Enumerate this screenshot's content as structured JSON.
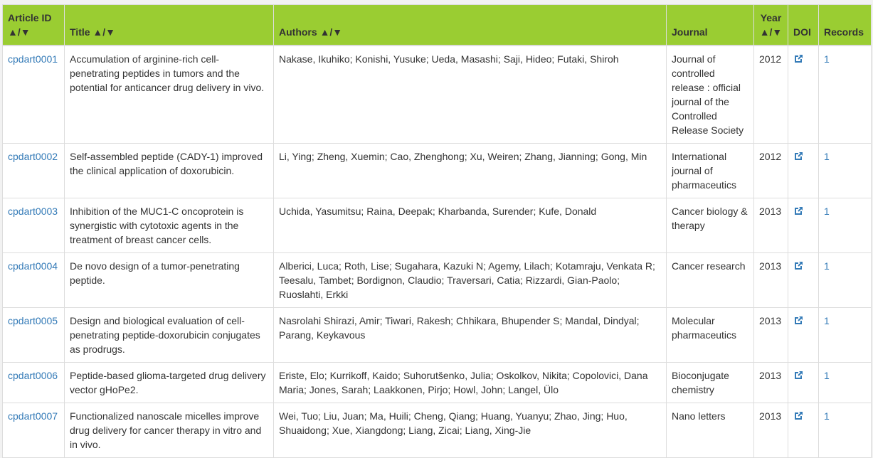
{
  "colors": {
    "header_bg": "#9acd32",
    "link": "#337ab7"
  },
  "headers": {
    "id": "Article ID",
    "title": "Title",
    "authors": "Authors",
    "journal": "Journal",
    "year": "Year",
    "doi": "DOI",
    "records": "Records",
    "sort": "▲/▼"
  },
  "doi_icon": "external-link-icon",
  "rows": [
    {
      "id": "cpdart0001",
      "title": "Accumulation of arginine-rich cell-penetrating peptides in tumors and the potential for anticancer drug delivery in vivo.",
      "authors": "Nakase, Ikuhiko; Konishi, Yusuke; Ueda, Masashi; Saji, Hideo; Futaki, Shiroh",
      "journal": "Journal of controlled release : official journal of the Controlled Release Society",
      "year": "2012",
      "records": "1"
    },
    {
      "id": "cpdart0002",
      "title": "Self-assembled peptide (CADY-1) improved the clinical application of doxorubicin.",
      "authors": "Li, Ying; Zheng, Xuemin; Cao, Zhenghong; Xu, Weiren; Zhang, Jianning; Gong, Min",
      "journal": "International journal of pharmaceutics",
      "year": "2012",
      "records": "1"
    },
    {
      "id": "cpdart0003",
      "title": "Inhibition of the MUC1-C oncoprotein is synergistic with cytotoxic agents in the treatment of breast cancer cells.",
      "authors": "Uchida, Yasumitsu; Raina, Deepak; Kharbanda, Surender; Kufe, Donald",
      "journal": "Cancer biology & therapy",
      "year": "2013",
      "records": "1"
    },
    {
      "id": "cpdart0004",
      "title": "De novo design of a tumor-penetrating peptide.",
      "authors": "Alberici, Luca; Roth, Lise; Sugahara, Kazuki N; Agemy, Lilach; Kotamraju, Venkata R; Teesalu, Tambet; Bordignon, Claudio; Traversari, Catia; Rizzardi, Gian-Paolo; Ruoslahti, Erkki",
      "journal": "Cancer research",
      "year": "2013",
      "records": "1"
    },
    {
      "id": "cpdart0005",
      "title": "Design and biological evaluation of cell-penetrating peptide-doxorubicin conjugates as prodrugs.",
      "authors": "Nasrolahi Shirazi, Amir; Tiwari, Rakesh; Chhikara, Bhupender S; Mandal, Dindyal; Parang, Keykavous",
      "journal": "Molecular pharmaceutics",
      "year": "2013",
      "records": "1"
    },
    {
      "id": "cpdart0006",
      "title": "Peptide-based glioma-targeted drug delivery vector gHoPe2.",
      "authors": "Eriste, Elo; Kurrikoff, Kaido; Suhorutšenko, Julia; Oskolkov, Nikita; Copolovici, Dana Maria; Jones, Sarah; Laakkonen, Pirjo; Howl, John; Langel, Ülo",
      "journal": "Bioconjugate chemistry",
      "year": "2013",
      "records": "1"
    },
    {
      "id": "cpdart0007",
      "title": "Functionalized nanoscale micelles improve drug delivery for cancer therapy in vitro and in vivo.",
      "authors": "Wei, Tuo; Liu, Juan; Ma, Huili; Cheng, Qiang; Huang, Yuanyu; Zhao, Jing; Huo, Shuaidong; Xue, Xiangdong; Liang, Zicai; Liang, Xing-Jie",
      "journal": "Nano letters",
      "year": "2013",
      "records": "1"
    }
  ]
}
